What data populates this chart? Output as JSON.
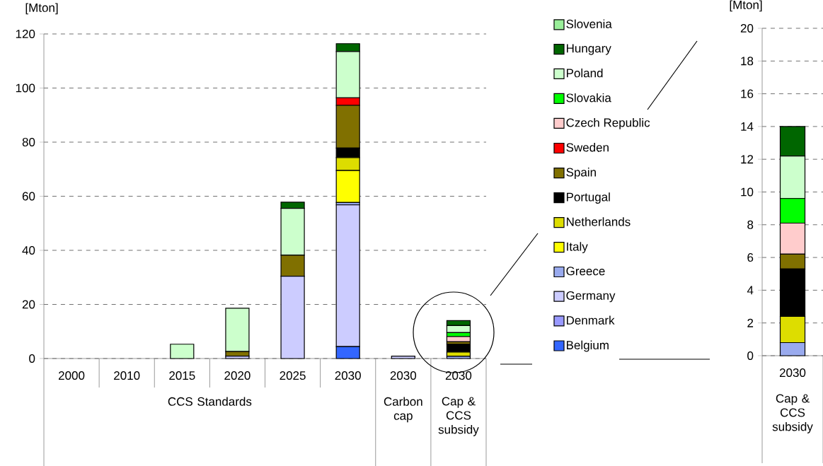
{
  "chart_data": [
    {
      "type": "bar",
      "stacked": true,
      "ylabel": "[Mton]",
      "ylim": [
        0,
        120
      ],
      "yticks": [
        0,
        20,
        40,
        60,
        80,
        100,
        120
      ],
      "grid": "y",
      "legend": "right",
      "categories": [
        "2000",
        "2010",
        "2015",
        "2020",
        "2025",
        "2030",
        "2030",
        "2030"
      ],
      "annotations": [
        "CCS Standards",
        "Carbon cap",
        "Cap & CCS subsidy"
      ],
      "series": [
        {
          "name": "Belgium",
          "color": "#3366ff",
          "values": [
            0,
            0,
            0,
            0,
            0,
            4.4,
            0,
            0
          ]
        },
        {
          "name": "Denmark",
          "color": "#9999ff",
          "values": [
            0,
            0,
            0,
            0,
            0,
            0,
            0,
            0
          ]
        },
        {
          "name": "Germany",
          "color": "#ccccff",
          "values": [
            0,
            0,
            0,
            0.9,
            30.4,
            52.4,
            0.9,
            0
          ]
        },
        {
          "name": "Greece",
          "color": "#99aaee",
          "values": [
            0,
            0,
            0,
            0,
            0,
            0.9,
            0,
            0.8
          ]
        },
        {
          "name": "Italy",
          "color": "#ffff00",
          "values": [
            0,
            0,
            0,
            0,
            0,
            11.8,
            0,
            0
          ]
        },
        {
          "name": "Netherlands",
          "color": "#dddd00",
          "values": [
            0,
            0,
            0,
            0,
            0,
            4.8,
            0,
            1.6
          ]
        },
        {
          "name": "Portugal",
          "color": "#000000",
          "values": [
            0,
            0,
            0,
            0,
            0,
            3.5,
            0,
            2.9
          ]
        },
        {
          "name": "Spain",
          "color": "#807000",
          "values": [
            0,
            0,
            0,
            1.7,
            7.8,
            15.8,
            0,
            0.9
          ]
        },
        {
          "name": "Sweden",
          "color": "#ff0000",
          "values": [
            0,
            0,
            0,
            0,
            0,
            2.8,
            0,
            0
          ]
        },
        {
          "name": "Czech Republic",
          "color": "#ffcccc",
          "values": [
            0,
            0,
            0,
            0,
            0,
            0,
            0,
            1.9
          ]
        },
        {
          "name": "Slovakia",
          "color": "#00ff00",
          "values": [
            0,
            0,
            0,
            0,
            0,
            0,
            0,
            1.5
          ]
        },
        {
          "name": "Poland",
          "color": "#ccffcc",
          "values": [
            0,
            0,
            5.3,
            16.0,
            17.3,
            17.1,
            0,
            2.6
          ]
        },
        {
          "name": "Hungary",
          "color": "#006600",
          "values": [
            0,
            0,
            0,
            0,
            2.3,
            2.9,
            0,
            1.8
          ]
        },
        {
          "name": "Slovenia",
          "color": "#99ee99",
          "values": [
            0,
            0,
            0,
            0,
            0,
            0,
            0,
            0
          ]
        }
      ]
    },
    {
      "type": "bar",
      "stacked": true,
      "ylabel": "[Mton]",
      "ylim": [
        0,
        20
      ],
      "yticks": [
        0,
        2,
        4,
        6,
        8,
        10,
        12,
        14,
        16,
        18,
        20
      ],
      "grid": "y",
      "categories": [
        "2030"
      ],
      "annotations": [
        "Cap & CCS subsidy"
      ],
      "series": [
        {
          "color": "#99aaee",
          "values": [
            0.8
          ]
        },
        {
          "color": "#dddd00",
          "values": [
            1.6
          ]
        },
        {
          "color": "#000000",
          "values": [
            2.9
          ]
        },
        {
          "color": "#807000",
          "values": [
            0.9
          ]
        },
        {
          "color": "#ffcccc",
          "values": [
            1.9
          ]
        },
        {
          "color": "#00ff00",
          "values": [
            1.5
          ]
        },
        {
          "color": "#ccffcc",
          "values": [
            2.6
          ]
        },
        {
          "color": "#006600",
          "values": [
            1.8
          ]
        }
      ]
    }
  ]
}
